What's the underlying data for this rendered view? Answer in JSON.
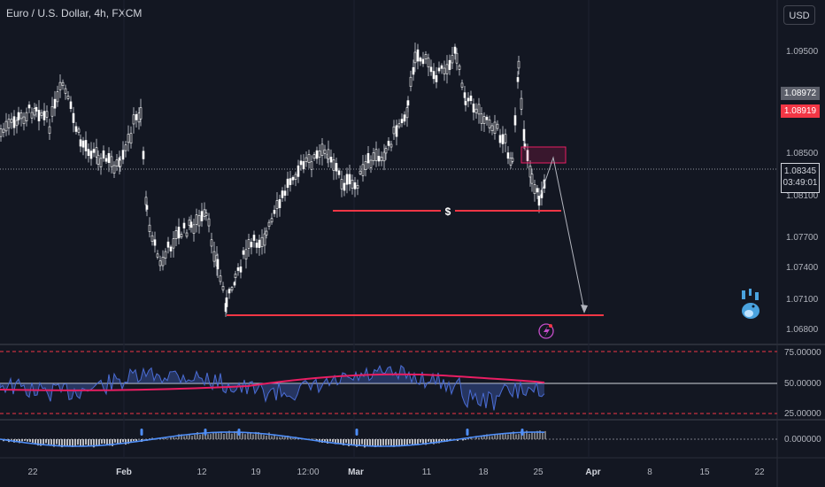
{
  "chart_title": "Euro / U.S. Dollar, 4h, FXCM",
  "currency_button": "USD",
  "price_axis": [
    "1.09500",
    "1.08500",
    "1.08100",
    "1.07700",
    "1.07400",
    "1.07100",
    "1.06800"
  ],
  "price_tags": {
    "last_high": "1.08972",
    "last_low": "1.08919",
    "current_price": "1.08345",
    "countdown": "03:49:01"
  },
  "date_axis": [
    "22",
    "Feb",
    "12",
    "19",
    "12:00",
    "Mar",
    "11",
    "18",
    "25",
    "Apr",
    "8",
    "15",
    "22"
  ],
  "date_axis_bold": [
    "Feb",
    "Mar",
    "Apr"
  ],
  "annotation_label": "$",
  "oscillator_axis": [
    "75.00000",
    "50.00000",
    "25.00000"
  ],
  "lower_indicator_axis": [
    "0.000000"
  ],
  "colors": {
    "background": "#131722",
    "candle": "#ffffff",
    "level_line": "#f23645",
    "zone": "#e91e63",
    "rsi_line": "#4a6cd4",
    "rsi_ma": "#e91e63",
    "lower_line": "#4f8ef7"
  },
  "icons": [
    "whale-icon",
    "lightning-icon"
  ]
}
